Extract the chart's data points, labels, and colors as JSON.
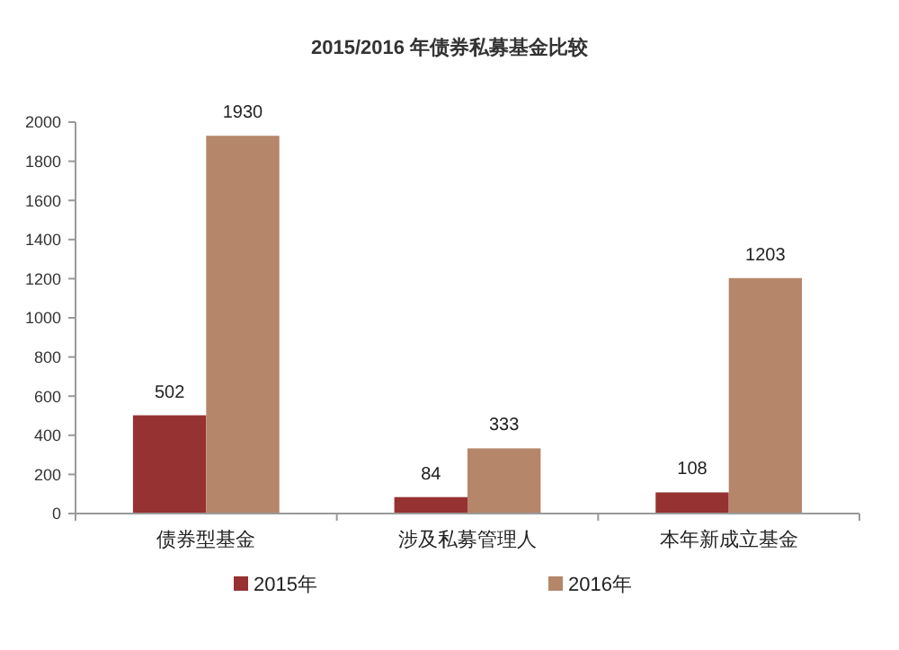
{
  "chart_data": {
    "type": "bar",
    "title": "2015/2016 年债券私募基金比较",
    "categories": [
      "债券型基金",
      "涉及私募管理人",
      "本年新成立基金"
    ],
    "series": [
      {
        "name": "2015年",
        "color": "#963232",
        "values": [
          502,
          84,
          108
        ]
      },
      {
        "name": "2016年",
        "color": "#b5866a",
        "values": [
          1930,
          333,
          1203
        ]
      }
    ],
    "ylim": [
      0,
      2000
    ],
    "yticks": [
      0,
      200,
      400,
      600,
      800,
      1000,
      1200,
      1400,
      1600,
      1800,
      2000
    ],
    "grid": false,
    "legend": "bottom",
    "data_labels": true
  }
}
